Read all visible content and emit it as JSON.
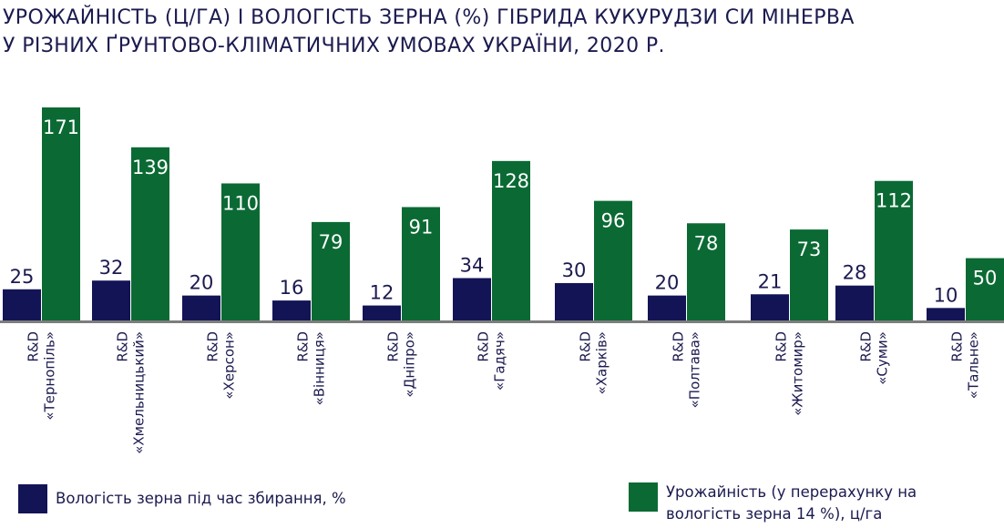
{
  "title_lines": [
    "УРОЖАЙНІСТЬ (Ц/ГА) І ВОЛОГІСТЬ ЗЕРНА (%) ГІБРИДА КУКУРУДЗИ СИ МІНЕРВА",
    "У РІЗНИХ ҐРУНТОВО-КЛІМАТИЧНИХ УМОВАХ УКРАЇНИ, 2020 Р."
  ],
  "colors": {
    "moisture": "#131456",
    "yield": "#0b6a34",
    "baseline": "#7d7d7d",
    "text": "#1b1a4f"
  },
  "legend": {
    "moisture": "Вологість зерна під час збирання, %",
    "yield": "Урожайність (у перерахунку на вологість зерна 14 %), ц/га"
  },
  "chart_data": {
    "type": "bar",
    "categories": [
      [
        "R&D",
        "«Тернопіль»"
      ],
      [
        "R&D",
        "«Хмельницький»"
      ],
      [
        "R&D",
        "«Херсон»"
      ],
      [
        "R&D",
        "«Вінниця»"
      ],
      [
        "R&D",
        "«Дніпро»"
      ],
      [
        "R&D",
        "«Гадяч»"
      ],
      [
        "R&D",
        "«Харків»"
      ],
      [
        "R&D",
        "«Полтава»"
      ],
      [
        "R&D",
        "«Житомир»"
      ],
      [
        "R&D",
        "«Суми»"
      ],
      [
        "R&D",
        "«Тальне»"
      ]
    ],
    "series": [
      {
        "name": "Вологість зерна під час збирання, %",
        "values": [
          25,
          32,
          20,
          16,
          12,
          34,
          30,
          20,
          21,
          28,
          10
        ]
      },
      {
        "name": "Урожайність (у перерахунку на вологість зерна 14 %), ц/га",
        "values": [
          171,
          139,
          110,
          79,
          91,
          128,
          96,
          78,
          73,
          112,
          50
        ]
      }
    ],
    "data_labels": true,
    "ylim": [
      0,
      171
    ],
    "grid": false,
    "legend_position": "bottom"
  }
}
